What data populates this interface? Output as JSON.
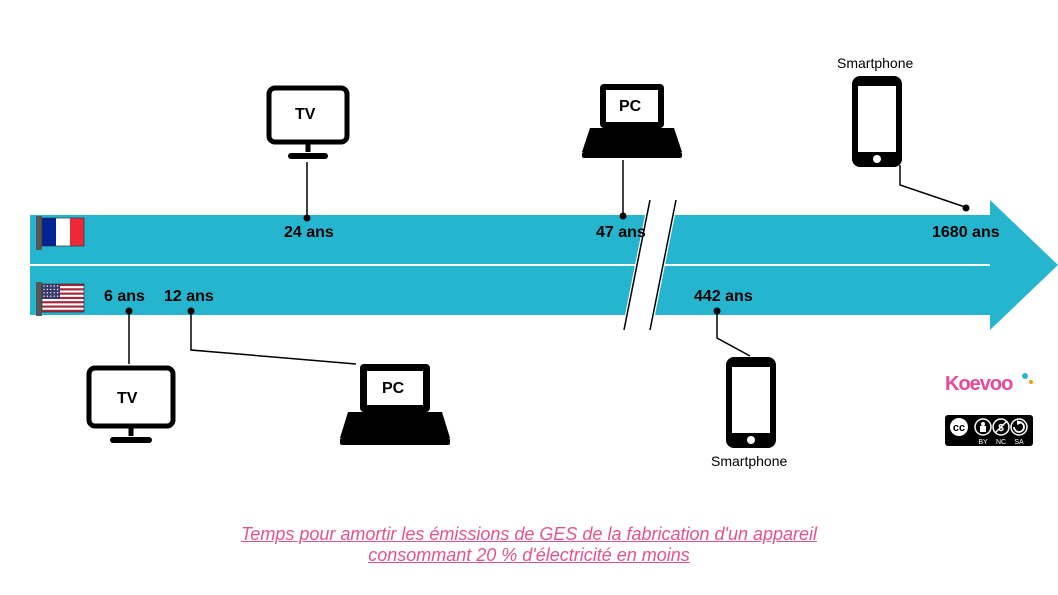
{
  "diagram": {
    "arrow_color": "#26b5ce",
    "break_gap_color": "#ffffff",
    "stroke": "#000000",
    "caption_lines": [
      "Temps pour amortir les émissions de GES de la fabrication d'un appareil ",
      "consommant 20 % d'électricité en moins"
    ],
    "caption_color": "#e6538a",
    "caption_fontsize": 18
  },
  "flags": {
    "france": {
      "blue": "#002395",
      "white": "#ffffff",
      "red": "#ed2939"
    },
    "usa": {
      "blue": "#3c3b6e",
      "white": "#ffffff",
      "red": "#b22234"
    }
  },
  "devices": {
    "tv_label": "TV",
    "pc_label": "PC",
    "smartphone_label": "Smartphone"
  },
  "top_row": {
    "tv_years": "24 ans",
    "pc_years": "47 ans",
    "phone_years": "1680 ans"
  },
  "bottom_row": {
    "tv_years": "6 ans",
    "pc_years": "12 ans",
    "phone_years": "442 ans"
  },
  "brand": {
    "text": "Koevoo",
    "pink": "#ec4899",
    "teal": "#26b5ce",
    "orange": "#f59e0b"
  },
  "cc": {
    "text": "cc",
    "by": "BY",
    "nc": "NC",
    "sa": "SA",
    "bg": "#000000",
    "fg": "#ffffff"
  }
}
